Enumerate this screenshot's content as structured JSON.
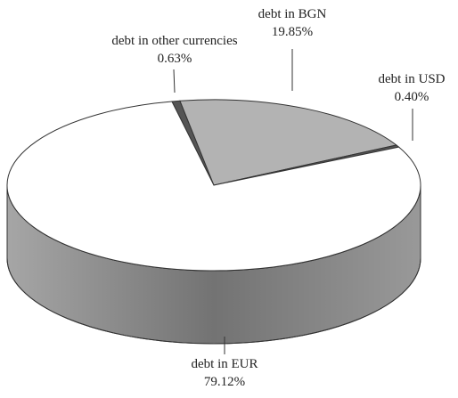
{
  "chart_data": {
    "type": "pie",
    "categories": [
      "debt in other currencies",
      "debt in BGN",
      "debt in USD",
      "debt in EUR"
    ],
    "values": [
      0.63,
      19.85,
      0.4,
      79.12
    ],
    "value_labels": [
      "0.63%",
      "19.85%",
      "0.40%",
      "79.12%"
    ],
    "colors": [
      "#555555",
      "#b3b3b3",
      "#555555",
      "#ffffff"
    ]
  }
}
